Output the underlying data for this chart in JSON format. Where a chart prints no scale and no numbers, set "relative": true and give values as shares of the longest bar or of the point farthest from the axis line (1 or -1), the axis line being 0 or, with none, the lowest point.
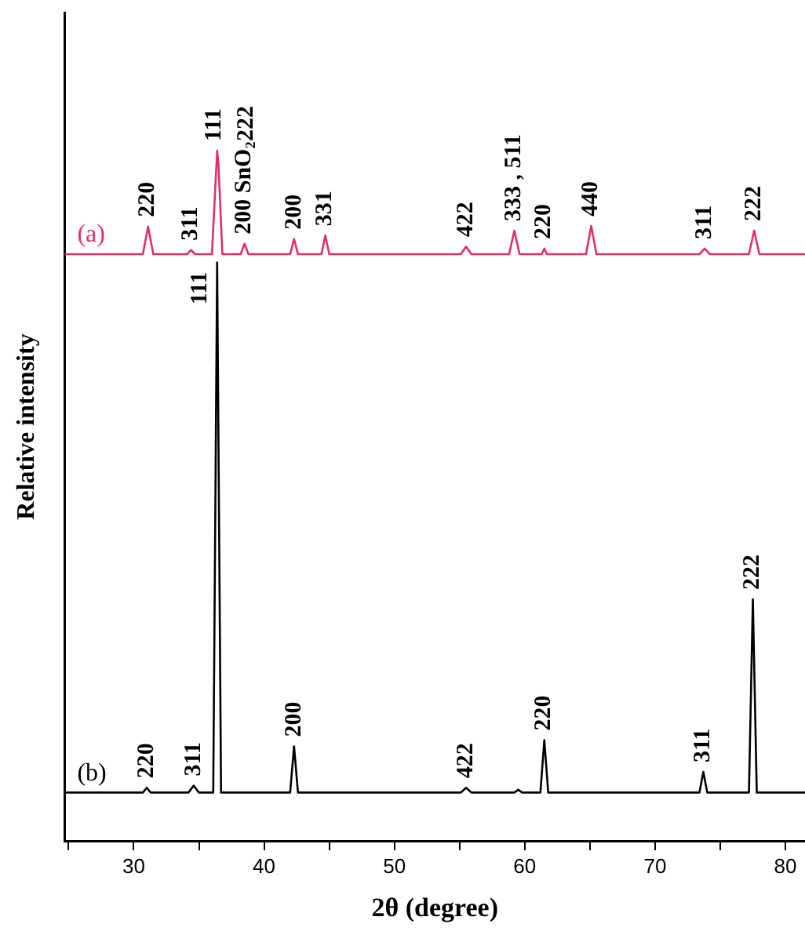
{
  "chart_data": {
    "type": "line",
    "xlabel": "2θ (degree)",
    "ylabel": "Relative intensity",
    "relative": true,
    "legend": false,
    "marker": "none",
    "xlim": [
      24.7,
      81.5
    ],
    "xticks": [
      {
        "value": 25,
        "label": null
      },
      30,
      {
        "value": 35,
        "label": null
      },
      40,
      {
        "value": 45,
        "label": null
      },
      50,
      {
        "value": 55,
        "label": null
      },
      60,
      {
        "value": 65,
        "label": null
      },
      70,
      {
        "value": 75,
        "label": null
      },
      80
    ],
    "series": [
      {
        "name": "(a)",
        "color": "#e0306a",
        "x": [
          24.7,
          30.7,
          31.1,
          31.5,
          34.1,
          34.4,
          34.7,
          36.0,
          36.4,
          36.5,
          36.8,
          38.2,
          38.5,
          38.8,
          42.0,
          42.3,
          42.6,
          44.4,
          44.7,
          45.0,
          55.1,
          55.5,
          55.9,
          58.8,
          59.2,
          59.6,
          61.3,
          61.5,
          61.7,
          64.7,
          65.1,
          65.5,
          73.4,
          73.8,
          74.2,
          77.2,
          77.6,
          78.0,
          81.5
        ],
        "values": [
          0.85,
          0.85,
          0.89,
          0.85,
          0.85,
          0.856,
          0.85,
          0.85,
          1.0,
          0.98,
          0.85,
          0.85,
          0.865,
          0.85,
          0.85,
          0.872,
          0.85,
          0.85,
          0.877,
          0.85,
          0.85,
          0.861,
          0.85,
          0.85,
          0.884,
          0.85,
          0.85,
          0.858,
          0.85,
          0.85,
          0.891,
          0.85,
          0.85,
          0.858,
          0.85,
          0.85,
          0.884,
          0.85,
          0.85
        ]
      },
      {
        "name": "(b)",
        "color": "#000000",
        "x": [
          24.7,
          30.7,
          31.0,
          31.3,
          34.2,
          34.6,
          35.0,
          36.1,
          36.4,
          36.7,
          42.0,
          42.3,
          42.6,
          55.1,
          55.5,
          55.9,
          59.2,
          59.5,
          59.8,
          61.2,
          61.5,
          61.8,
          73.4,
          73.7,
          74.0,
          77.2,
          77.5,
          77.8,
          81.5
        ],
        "values": [
          0.07,
          0.07,
          0.077,
          0.07,
          0.07,
          0.08,
          0.07,
          0.07,
          0.838,
          0.07,
          0.07,
          0.137,
          0.07,
          0.07,
          0.077,
          0.07,
          0.07,
          0.074,
          0.07,
          0.07,
          0.146,
          0.07,
          0.07,
          0.1,
          0.07,
          0.07,
          0.35,
          0.07,
          0.07
        ]
      }
    ],
    "annotations": [
      {
        "text": "220",
        "x": 31.1,
        "y": 0.89
      },
      {
        "text": "311",
        "x": 34.4,
        "y": 0.856
      },
      {
        "text": "111",
        "x": 36.2,
        "y": 1.0
      },
      {
        "text": "222",
        "x": 36.6,
        "y": 1.0
      },
      {
        "text": "200 SnO₂",
        "x": 38.5,
        "y": 0.865
      },
      {
        "text": "200",
        "x": 42.3,
        "y": 0.872
      },
      {
        "text": "331",
        "x": 44.7,
        "y": 0.877
      },
      {
        "text": "422",
        "x": 55.5,
        "y": 0.861
      },
      {
        "text": "333 , 511",
        "x": 59.2,
        "y": 0.884
      },
      {
        "text": "220",
        "x": 61.5,
        "y": 0.858
      },
      {
        "text": "440",
        "x": 65.1,
        "y": 0.891
      },
      {
        "text": "311",
        "x": 73.8,
        "y": 0.858
      },
      {
        "text": "222",
        "x": 77.6,
        "y": 0.884
      },
      {
        "text": "220",
        "x": 31.0,
        "y": 0.077
      },
      {
        "text": "311",
        "x": 34.6,
        "y": 0.08
      },
      {
        "text": "111",
        "x": 36.4,
        "y": 0.838
      },
      {
        "text": "200",
        "x": 42.3,
        "y": 0.137
      },
      {
        "text": "422",
        "x": 55.5,
        "y": 0.077
      },
      {
        "text": "220",
        "x": 61.5,
        "y": 0.146
      },
      {
        "text": "311",
        "x": 73.7,
        "y": 0.1
      },
      {
        "text": "222",
        "x": 77.5,
        "y": 0.35
      }
    ]
  }
}
